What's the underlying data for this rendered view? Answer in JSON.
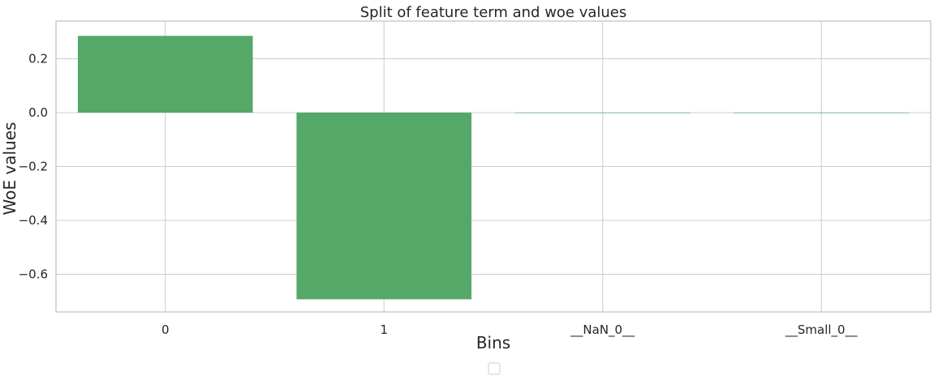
{
  "chart_data": {
    "type": "bar",
    "title": "Split of feature term and woe values",
    "xlabel": "Bins",
    "ylabel": "WoE values",
    "categories": [
      "0",
      "1",
      "__NaN_0__",
      "__Small_0__"
    ],
    "values": [
      0.285,
      -0.693,
      0,
      0
    ],
    "ylim": [
      -0.74,
      0.34
    ],
    "yticks": [
      0.2,
      0.0,
      -0.2,
      -0.4,
      -0.6
    ],
    "ytick_labels": [
      "0.2",
      "0.0",
      "−0.2",
      "−0.4",
      "−0.6"
    ],
    "grid": true,
    "legend": "bottom-center (empty)",
    "colors": {
      "bar": "#55a868",
      "grid": "#cccccc",
      "spine": "#cccccc",
      "text": "#262626"
    }
  }
}
